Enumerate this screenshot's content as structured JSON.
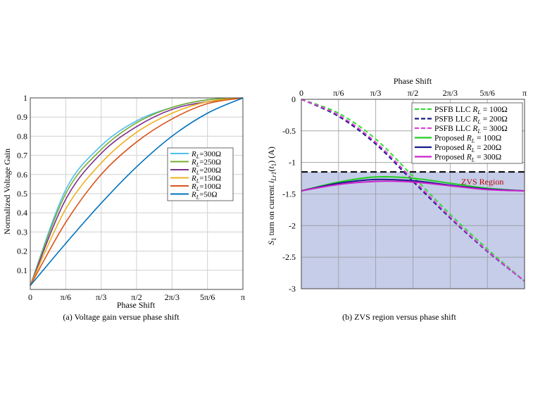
{
  "chart_data": [
    {
      "type": "line",
      "xlabel": "Phase Shift",
      "ylabel": "Normalized Voltage Gain",
      "caption": "(a) Voltage gain versue phase shift",
      "xlim": [
        0,
        180
      ],
      "ylim": [
        0,
        1
      ],
      "xticks": [
        0,
        30,
        60,
        90,
        120,
        150,
        180
      ],
      "xtick_labels": [
        "0",
        "π/6",
        "π/3",
        "π/2",
        "2π/3",
        "5π/6",
        "π"
      ],
      "yticks": [
        0.1,
        0.2,
        0.3,
        0.4,
        0.5,
        0.6,
        0.7,
        0.8,
        0.9,
        1
      ],
      "ytick_labels": [
        "0.1",
        "0.2",
        "0.3",
        "0.4",
        "0.5",
        "0.6",
        "0.7",
        "0.8",
        "0.9",
        "1"
      ],
      "grid": true,
      "legend_position": "center-right",
      "x": [
        0,
        30,
        60,
        90,
        120,
        150,
        180
      ],
      "series": [
        {
          "name": "R",
          "sub": "L",
          "suffix": "=300Ω",
          "color": "#4dbeee",
          "values": [
            0.02,
            0.52,
            0.75,
            0.88,
            0.95,
            0.99,
            1.0
          ]
        },
        {
          "name": "R",
          "sub": "L",
          "suffix": "=250Ω",
          "color": "#77ac30",
          "values": [
            0.02,
            0.5,
            0.73,
            0.87,
            0.95,
            0.99,
            1.0
          ]
        },
        {
          "name": "R",
          "sub": "L",
          "suffix": "=200Ω",
          "color": "#7e2f8e",
          "values": [
            0.02,
            0.47,
            0.71,
            0.85,
            0.94,
            0.98,
            1.0
          ]
        },
        {
          "name": "R",
          "sub": "L",
          "suffix": "=150Ω",
          "color": "#edb120",
          "values": [
            0.02,
            0.42,
            0.66,
            0.82,
            0.92,
            0.98,
            1.0
          ]
        },
        {
          "name": "R",
          "sub": "L",
          "suffix": "=100Ω",
          "color": "#d95319",
          "values": [
            0.02,
            0.35,
            0.6,
            0.77,
            0.89,
            0.97,
            1.0
          ]
        },
        {
          "name": "R",
          "sub": "L",
          "suffix": "=50Ω",
          "color": "#0072bd",
          "values": [
            0.02,
            0.24,
            0.45,
            0.64,
            0.8,
            0.92,
            1.0
          ]
        }
      ]
    },
    {
      "type": "line",
      "xlabel": "Phase Shift",
      "xlabel_position": "top",
      "ylabel_pre": "S",
      "ylabel_pre_sub": "1",
      "ylabel_mid": " turn on current ",
      "ylabel_var": "i",
      "ylabel_var_sub": "Lr1",
      "ylabel_post": "(",
      "ylabel_post_var": "t",
      "ylabel_post_sub": "1",
      "ylabel_end": ") (A)",
      "caption": "(b) ZVS region versus phase shift",
      "xlim": [
        0,
        180
      ],
      "ylim": [
        -3,
        0
      ],
      "xticks": [
        0,
        30,
        60,
        90,
        120,
        150,
        180
      ],
      "xtick_labels": [
        "0",
        "π/6",
        "π/3",
        "π/2",
        "2π/3",
        "5π/6",
        "π"
      ],
      "yticks": [
        0,
        -0.5,
        -1,
        -1.5,
        -2,
        -2.5,
        -3
      ],
      "ytick_labels": [
        "0",
        "-0.5",
        "-1",
        "-1.5",
        "-2",
        "-2.5",
        "-3"
      ],
      "grid": true,
      "legend_position": "top-right",
      "zvs_threshold": -1.15,
      "zvs_label": "ZVS Region",
      "zvs_fill": "#c5cde9",
      "x": [
        0,
        30,
        60,
        90,
        120,
        150,
        180
      ],
      "series": [
        {
          "name": "PSFB LLC",
          "var": "R",
          "sub": "L",
          "suffix": " = 100Ω",
          "color": "#33dd33",
          "dash": true,
          "values": [
            0.0,
            -0.22,
            -0.63,
            -1.22,
            -1.82,
            -2.37,
            -2.88
          ]
        },
        {
          "name": "PSFB LLC",
          "var": "R",
          "sub": "L",
          "suffix": " = 200Ω",
          "color": "#1a1a8c",
          "dash": true,
          "values": [
            0.0,
            -0.27,
            -0.71,
            -1.3,
            -1.88,
            -2.41,
            -2.88
          ]
        },
        {
          "name": "PSFB LLC",
          "var": "R",
          "sub": "L",
          "suffix": " = 300Ω",
          "color": "#e040d8",
          "dash": true,
          "values": [
            0.0,
            -0.25,
            -0.68,
            -1.27,
            -1.86,
            -2.4,
            -2.88
          ]
        },
        {
          "name": "Proposed",
          "var": "R",
          "sub": "L",
          "suffix": " = 100Ω",
          "color": "#22cc22",
          "dash": false,
          "values": [
            -1.45,
            -1.31,
            -1.23,
            -1.25,
            -1.33,
            -1.41,
            -1.45
          ]
        },
        {
          "name": "Proposed",
          "var": "R",
          "sub": "L",
          "suffix": " = 200Ω",
          "color": "#1a1a8c",
          "dash": false,
          "values": [
            -1.45,
            -1.33,
            -1.27,
            -1.29,
            -1.36,
            -1.42,
            -1.45
          ]
        },
        {
          "name": "Proposed",
          "var": "R",
          "sub": "L",
          "suffix": " = 300Ω",
          "color": "#cc22cc",
          "dash": false,
          "values": [
            -1.45,
            -1.35,
            -1.3,
            -1.31,
            -1.37,
            -1.43,
            -1.45
          ]
        }
      ]
    }
  ]
}
